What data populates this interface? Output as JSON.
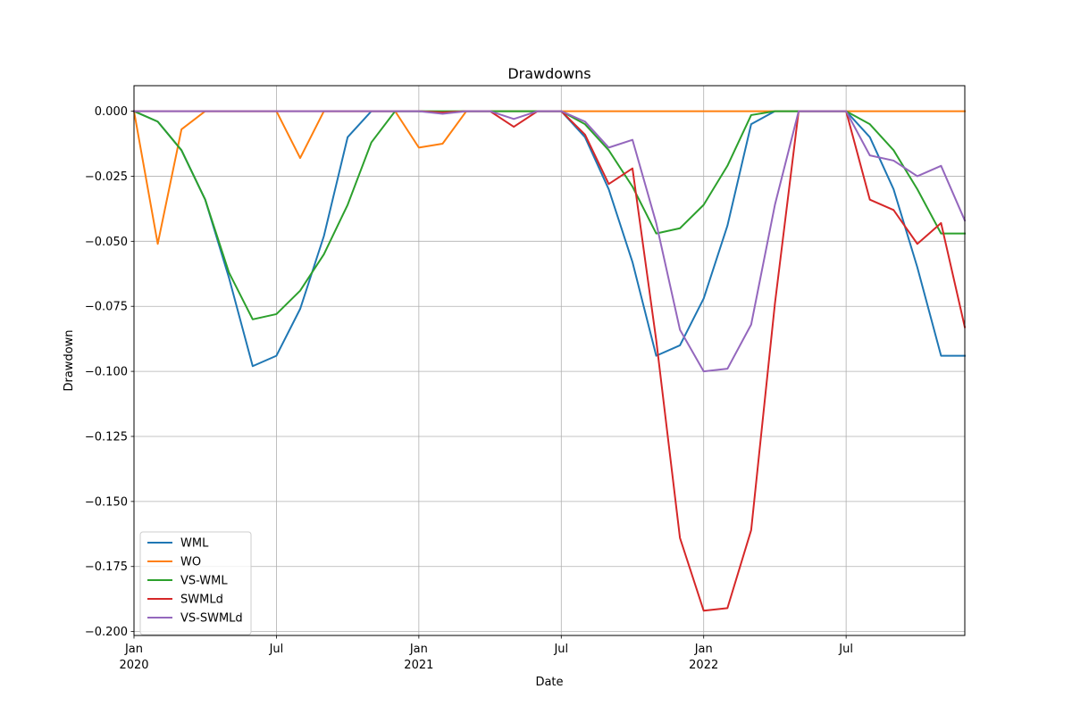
{
  "chart_data": {
    "type": "line",
    "title": "Drawdowns",
    "xlabel": "Date",
    "ylabel": "Drawdown",
    "x": [
      "2020-01",
      "2020-02",
      "2020-03",
      "2020-04",
      "2020-05",
      "2020-06",
      "2020-07",
      "2020-08",
      "2020-09",
      "2020-10",
      "2020-11",
      "2020-12",
      "2021-01",
      "2021-02",
      "2021-03",
      "2021-04",
      "2021-05",
      "2021-06",
      "2021-07",
      "2021-08",
      "2021-09",
      "2021-10",
      "2021-11",
      "2021-12",
      "2022-01",
      "2022-02",
      "2022-03",
      "2022-04",
      "2022-05",
      "2022-06",
      "2022-07",
      "2022-08",
      "2022-09",
      "2022-10",
      "2022-11",
      "2022-12"
    ],
    "xlim": [
      "2020-01",
      "2022-12"
    ],
    "ylim": [
      -0.2015,
      0.0098
    ],
    "grid": true,
    "legend_position": "lower-left",
    "x_ticks": [
      {
        "at": "2020-01",
        "label": "Jan",
        "sublabel": "2020"
      },
      {
        "at": "2020-07",
        "label": "Jul",
        "sublabel": ""
      },
      {
        "at": "2021-01",
        "label": "Jan",
        "sublabel": "2021"
      },
      {
        "at": "2021-07",
        "label": "Jul",
        "sublabel": ""
      },
      {
        "at": "2022-01",
        "label": "Jan",
        "sublabel": "2022"
      },
      {
        "at": "2022-07",
        "label": "Jul",
        "sublabel": ""
      }
    ],
    "y_ticks": [
      {
        "value": 0.0,
        "label": "0.000"
      },
      {
        "value": -0.025,
        "label": "−0.025"
      },
      {
        "value": -0.05,
        "label": "−0.050"
      },
      {
        "value": -0.075,
        "label": "−0.075"
      },
      {
        "value": -0.1,
        "label": "−0.100"
      },
      {
        "value": -0.125,
        "label": "−0.125"
      },
      {
        "value": -0.15,
        "label": "−0.150"
      },
      {
        "value": -0.175,
        "label": "−0.175"
      },
      {
        "value": -0.2,
        "label": "−0.200"
      }
    ],
    "series": [
      {
        "name": "WML",
        "color": "#1f77b4",
        "values": [
          0,
          -0.004,
          -0.015,
          -0.034,
          -0.064,
          -0.098,
          -0.094,
          -0.076,
          -0.048,
          -0.01,
          0,
          0,
          0,
          -0.0005,
          0,
          0,
          0,
          0,
          0,
          -0.01,
          -0.03,
          -0.058,
          -0.094,
          -0.09,
          -0.072,
          -0.044,
          -0.005,
          0,
          0,
          0,
          0,
          -0.01,
          -0.03,
          -0.06,
          -0.094,
          -0.094
        ]
      },
      {
        "name": "WO",
        "color": "#ff7f0e",
        "values": [
          0,
          -0.051,
          -0.007,
          0,
          0,
          0,
          0,
          -0.018,
          0,
          0,
          0,
          0,
          -0.014,
          -0.0125,
          0,
          0,
          0,
          0,
          0,
          0,
          0,
          0,
          0,
          0,
          0,
          0,
          0,
          0,
          0,
          0,
          0,
          0,
          0,
          0,
          0,
          0
        ]
      },
      {
        "name": "VS-WML",
        "color": "#2ca02c",
        "values": [
          0,
          -0.004,
          -0.015,
          -0.034,
          -0.062,
          -0.08,
          -0.078,
          -0.069,
          -0.055,
          -0.036,
          -0.012,
          0,
          0,
          0,
          0,
          0,
          0,
          0,
          0,
          -0.005,
          -0.015,
          -0.029,
          -0.047,
          -0.045,
          -0.036,
          -0.021,
          -0.0015,
          0,
          0,
          0,
          0,
          -0.005,
          -0.015,
          -0.03,
          -0.047,
          -0.047
        ]
      },
      {
        "name": "SWMLd",
        "color": "#d62728",
        "values": [
          0,
          0,
          0,
          0,
          0,
          0,
          0,
          0,
          0,
          0,
          0,
          0,
          0,
          -0.0005,
          0,
          0,
          -0.006,
          0,
          0,
          -0.009,
          -0.028,
          -0.022,
          -0.088,
          -0.164,
          -0.192,
          -0.191,
          -0.161,
          -0.074,
          0,
          0,
          0,
          -0.034,
          -0.038,
          -0.051,
          -0.043,
          -0.083
        ]
      },
      {
        "name": "VS-SWMLd",
        "color": "#9467bd",
        "values": [
          0,
          0,
          0,
          0,
          0,
          0,
          0,
          0,
          0,
          0,
          0,
          0,
          0,
          -0.001,
          0,
          0,
          -0.003,
          0,
          0,
          -0.004,
          -0.014,
          -0.011,
          -0.043,
          -0.084,
          -0.1,
          -0.099,
          -0.082,
          -0.036,
          0,
          0,
          0,
          -0.017,
          -0.019,
          -0.025,
          -0.021,
          -0.042
        ]
      }
    ]
  }
}
